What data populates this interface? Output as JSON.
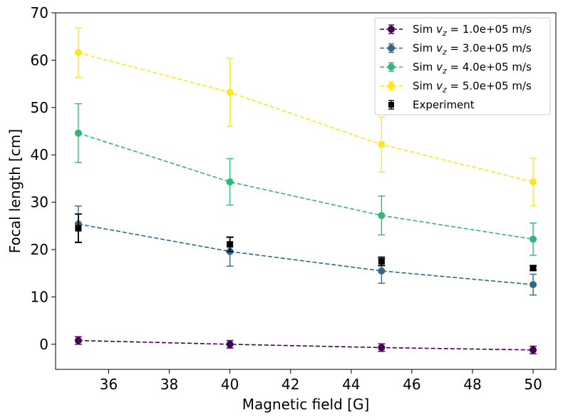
{
  "chart_data": {
    "type": "line",
    "xlabel": "Magnetic field [G]",
    "ylabel": "Focal length [cm]",
    "xlim": [
      34.25,
      50.75
    ],
    "ylim": [
      -5.3,
      70.0
    ],
    "xticks": [
      36,
      38,
      40,
      42,
      44,
      46,
      48,
      50
    ],
    "yticks": [
      0,
      10,
      20,
      30,
      40,
      50,
      60,
      70
    ],
    "grid": false,
    "legend_position": "top-right",
    "x": [
      35,
      40,
      45,
      50
    ],
    "series": [
      {
        "name": "Sim v_z = 1.0e+05 m/s",
        "legend_prefix": "Sim ",
        "legend_var": "v",
        "legend_sub": "z",
        "legend_rest": " = 1.0e+05 m/s",
        "color": "#440154",
        "marker": "circle",
        "dashed": true,
        "values": [
          0.8,
          0.0,
          -0.7,
          -1.2
        ],
        "errors": [
          0.8,
          0.8,
          0.8,
          0.8
        ]
      },
      {
        "name": "Sim v_z = 3.0e+05 m/s",
        "legend_prefix": "Sim ",
        "legend_var": "v",
        "legend_sub": "z",
        "legend_rest": " = 3.0e+05 m/s",
        "color": "#31688e",
        "marker": "circle",
        "dashed": true,
        "values": [
          25.4,
          19.6,
          15.5,
          12.6
        ],
        "errors": [
          3.8,
          3.1,
          2.6,
          2.2
        ]
      },
      {
        "name": "Sim v_z = 4.0e+05 m/s",
        "legend_prefix": "Sim ",
        "legend_var": "v",
        "legend_sub": "z",
        "legend_rest": " = 4.0e+05 m/s",
        "color": "#35b779",
        "marker": "circle",
        "dashed": true,
        "values": [
          44.6,
          34.3,
          27.2,
          22.2
        ],
        "errors": [
          6.2,
          4.9,
          4.1,
          3.4
        ]
      },
      {
        "name": "Sim v_z = 5.0e+05 m/s",
        "legend_prefix": "Sim ",
        "legend_var": "v",
        "legend_sub": "z",
        "legend_rest": " = 5.0e+05 m/s",
        "color": "#fde725",
        "marker": "circle",
        "dashed": true,
        "values": [
          61.6,
          53.2,
          42.2,
          34.3
        ],
        "errors": [
          5.2,
          7.2,
          5.8,
          5.0
        ]
      },
      {
        "name": "Experiment",
        "color": "#000000",
        "marker": "square",
        "dashed": false,
        "values": [
          24.5,
          21.1,
          17.5,
          16.1
        ],
        "errors": [
          3.0,
          1.5,
          0.9,
          0.5
        ]
      }
    ]
  }
}
